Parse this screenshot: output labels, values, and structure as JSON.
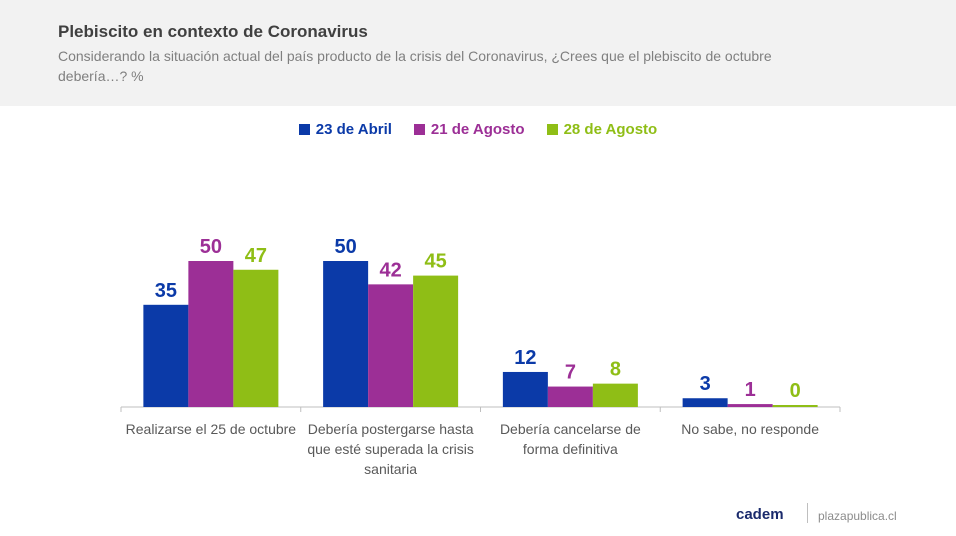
{
  "header": {
    "title": "Plebiscito en contexto de Coronavirus",
    "subtitle": "Considerando la situación actual del país producto de la crisis del Coronavirus, ¿Crees que el plebiscito de octubre debería…? %"
  },
  "chart_data": {
    "type": "bar",
    "categories": [
      [
        "Realizarse el 25 de octubre"
      ],
      [
        "Debería postergarse hasta",
        "que esté superada la crisis",
        "sanitaria"
      ],
      [
        "Debería cancelarse de",
        "forma definitiva"
      ],
      [
        "No sabe, no responde"
      ]
    ],
    "series": [
      {
        "name": "23 de Abril",
        "color": "#0b3aa8",
        "values": [
          35,
          50,
          12,
          3
        ]
      },
      {
        "name": "21 de Agosto",
        "color": "#9c2f96",
        "values": [
          50,
          42,
          7,
          1
        ]
      },
      {
        "name": "28 de Agosto",
        "color": "#8fbe16",
        "values": [
          47,
          45,
          8,
          0
        ]
      }
    ],
    "ylim": [
      0,
      55
    ],
    "grid": false,
    "legend_position": "top"
  },
  "footer": {
    "logo": "cadem",
    "site": "plazapublica.cl"
  }
}
